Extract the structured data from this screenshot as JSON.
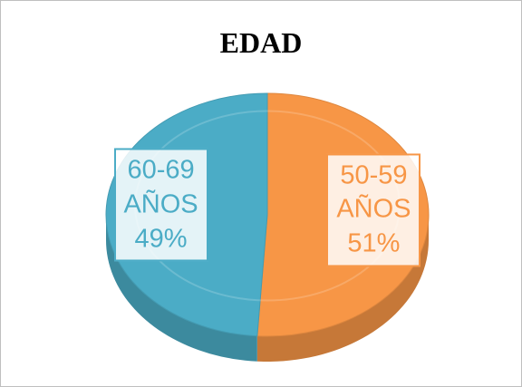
{
  "chart_data": {
    "type": "pie",
    "title": "EDAD",
    "categories": [
      "50-59 AÑOS",
      "60-69 AÑOS"
    ],
    "values": [
      51,
      49
    ],
    "value_labels": [
      "51%",
      "49%"
    ],
    "colors": [
      "#f79646",
      "#4bacc6"
    ]
  }
}
